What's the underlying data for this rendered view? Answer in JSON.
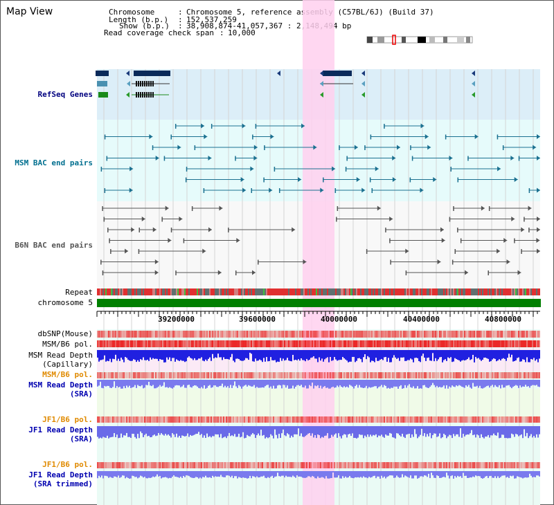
{
  "page_title": "Map View",
  "header": {
    "chromosome_label": "Chromosome",
    "chromosome_value": "Chromosome 5, reference assembly (C57BL/6J) (Build 37)",
    "length_label": "Length (b.p.)",
    "length_value": "152,537,259",
    "show_label": "Show (b.p.)",
    "show_value": "38,908,874-41,057,367 : 2,148,494 bp",
    "coverage_label": "Read coverage check span",
    "coverage_value": "10,000"
  },
  "tracks": {
    "refseq": "RefSeq Genes",
    "msm_bac": "MSM BAC end pairs",
    "b6n_bac": "B6N BAC end pairs",
    "repeat": "Repeat",
    "chromosome": "chromosome 5",
    "dbsnp": "dbSNP(Mouse)",
    "msm_b6_pol_1": "MSM/B6 pol.",
    "msm_read_depth_cap_1": "MSM Read Depth",
    "msm_read_depth_cap_2": "(Capillary)",
    "msm_b6_pol_2": "MSM/B6 pol.",
    "msm_read_depth_sra_1": "MSM Read Depth",
    "msm_read_depth_sra_2": "(SRA)",
    "jf1_b6_pol_1": "JF1/B6 pol.",
    "jf1_read_depth_sra_1": "JF1 Read Depth",
    "jf1_read_depth_sra_2": "(SRA)",
    "jf1_b6_pol_2": "JF1/B6 pol.",
    "jf1_read_depth_trim_1": "JF1 Read Depth",
    "jf1_read_depth_trim_2": "(SRA trimmed)"
  },
  "axis_ticks": [
    "39200000",
    "39600000",
    "40000000",
    "40400000",
    "40800000"
  ],
  "colors": {
    "refseq_label": "#00007f",
    "msm_label": "#006f8f",
    "b6n_label": "#555555",
    "pol_label": "#e08a00",
    "depth_label": "#0000b0",
    "highlight": "#ffd0ef",
    "chromosome_bar": "#007f00"
  }
}
